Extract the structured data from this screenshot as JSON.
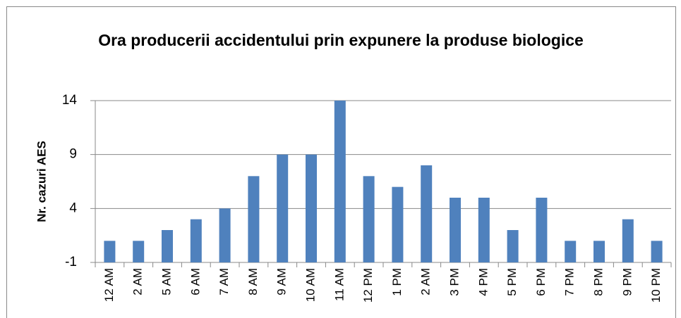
{
  "chart_data": {
    "type": "bar",
    "title": "Ora producerii accidentului prin expunere la produse biologice",
    "y_label": "Nr. cazuri AES",
    "categories": [
      "12 AM",
      "2 AM",
      "5 AM",
      "6 AM",
      "7 AM",
      "8 AM",
      "9 AM",
      "10 AM",
      "11 AM",
      "12 PM",
      "1 PM",
      "2 AM",
      "3 PM",
      "4 PM",
      "5 PM",
      "6 PM",
      "7 PM",
      "8 PM",
      "9 PM",
      "10 PM"
    ],
    "values": [
      1,
      1,
      2,
      3,
      4,
      7,
      9,
      9,
      14,
      7,
      6,
      8,
      5,
      5,
      2,
      5,
      1,
      1,
      3,
      1
    ],
    "color": "#4f81bd",
    "ylim": [
      -1,
      14
    ],
    "yticks": [
      -1,
      4,
      9,
      14
    ],
    "grid": true
  }
}
